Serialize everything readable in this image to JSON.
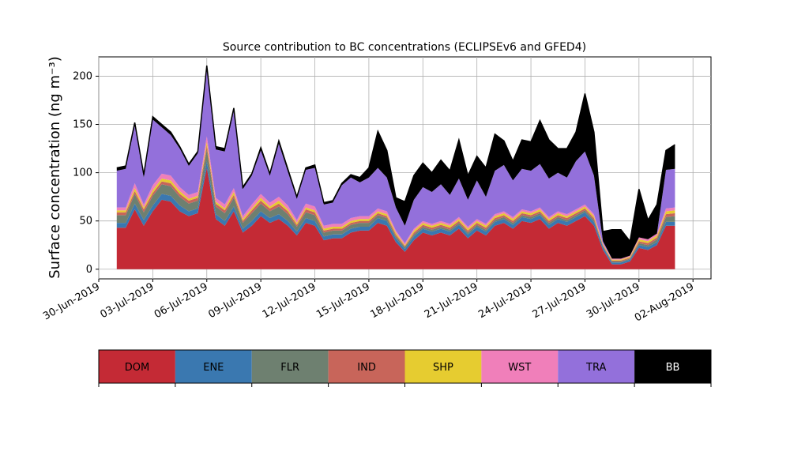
{
  "chart_data": {
    "type": "area",
    "stacked": true,
    "title": "Source contribution to BC concentrations (ECLIPSEv6 and GFED4)",
    "ylabel": "Surface concentration (ng m⁻³)",
    "xlabel": "",
    "ylim": [
      -10,
      220
    ],
    "xlim": [
      "2019-06-30",
      "2019-08-03"
    ],
    "grid": true,
    "yticks": [
      0,
      50,
      100,
      150,
      200
    ],
    "xticks": [
      "30-Jun-2019",
      "03-Jul-2019",
      "06-Jul-2019",
      "09-Jul-2019",
      "12-Jul-2019",
      "15-Jul-2019",
      "18-Jul-2019",
      "21-Jul-2019",
      "24-Jul-2019",
      "27-Jul-2019",
      "30-Jul-2019",
      "02-Aug-2019"
    ],
    "legend_placement": "colorbar below plot",
    "x": [
      "2019-07-01",
      "2019-07-01",
      "2019-07-02",
      "2019-07-02",
      "2019-07-03",
      "2019-07-03",
      "2019-07-04",
      "2019-07-04",
      "2019-07-05",
      "2019-07-05",
      "2019-07-06",
      "2019-07-06",
      "2019-07-07",
      "2019-07-07",
      "2019-07-08",
      "2019-07-08",
      "2019-07-09",
      "2019-07-09",
      "2019-07-10",
      "2019-07-10",
      "2019-07-11",
      "2019-07-11",
      "2019-07-12",
      "2019-07-12",
      "2019-07-13",
      "2019-07-13",
      "2019-07-14",
      "2019-07-14",
      "2019-07-15",
      "2019-07-15",
      "2019-07-16",
      "2019-07-16",
      "2019-07-17",
      "2019-07-17",
      "2019-07-18",
      "2019-07-18",
      "2019-07-19",
      "2019-07-19",
      "2019-07-20",
      "2019-07-20",
      "2019-07-21",
      "2019-07-21",
      "2019-07-22",
      "2019-07-22",
      "2019-07-23",
      "2019-07-23",
      "2019-07-24",
      "2019-07-24",
      "2019-07-25",
      "2019-07-25",
      "2019-07-26",
      "2019-07-26",
      "2019-07-27",
      "2019-07-27",
      "2019-07-28",
      "2019-07-28",
      "2019-07-29",
      "2019-07-29",
      "2019-07-30",
      "2019-07-30",
      "2019-07-31",
      "2019-07-31",
      "2019-08-01"
    ],
    "series": [
      {
        "name": "DOM",
        "color": "#c42a35",
        "values": [
          43,
          43,
          62,
          45,
          60,
          72,
          70,
          60,
          55,
          58,
          105,
          52,
          45,
          60,
          38,
          45,
          55,
          48,
          52,
          45,
          35,
          48,
          45,
          30,
          32,
          32,
          38,
          40,
          40,
          48,
          45,
          28,
          18,
          30,
          38,
          35,
          38,
          35,
          42,
          32,
          40,
          35,
          45,
          48,
          42,
          50,
          48,
          52,
          42,
          48,
          45,
          50,
          55,
          45,
          20,
          5,
          5,
          8,
          22,
          20,
          25,
          45,
          45
        ]
      },
      {
        "name": "ENE",
        "color": "#3a78b0",
        "values": [
          5,
          5,
          6,
          6,
          6,
          6,
          6,
          6,
          5,
          5,
          7,
          5,
          5,
          5,
          4,
          5,
          5,
          5,
          5,
          5,
          4,
          5,
          5,
          4,
          4,
          4,
          4,
          4,
          4,
          5,
          5,
          4,
          3,
          4,
          4,
          4,
          4,
          4,
          4,
          4,
          4,
          4,
          4,
          4,
          4,
          4,
          4,
          4,
          4,
          4,
          4,
          4,
          4,
          4,
          3,
          2,
          2,
          2,
          3,
          3,
          3,
          4,
          4
        ]
      },
      {
        "name": "FLR",
        "color": "#6e8070",
        "values": [
          8,
          8,
          10,
          8,
          10,
          10,
          10,
          9,
          8,
          8,
          12,
          8,
          8,
          9,
          6,
          8,
          8,
          7,
          8,
          7,
          5,
          6,
          6,
          4,
          4,
          4,
          4,
          4,
          4,
          3,
          3,
          2,
          2,
          2,
          2,
          2,
          2,
          2,
          2,
          2,
          2,
          2,
          2,
          2,
          2,
          2,
          2,
          2,
          2,
          2,
          2,
          2,
          2,
          2,
          1,
          1,
          1,
          1,
          2,
          2,
          3,
          5,
          6
        ]
      },
      {
        "name": "IND",
        "color": "#c8655a",
        "values": [
          3,
          3,
          3,
          3,
          3,
          3,
          3,
          3,
          3,
          3,
          4,
          3,
          3,
          3,
          2,
          3,
          3,
          3,
          3,
          3,
          2,
          3,
          3,
          2,
          2,
          2,
          2,
          2,
          2,
          2,
          2,
          2,
          1,
          2,
          2,
          2,
          2,
          2,
          2,
          2,
          2,
          2,
          2,
          2,
          2,
          2,
          2,
          2,
          2,
          2,
          2,
          2,
          2,
          2,
          1,
          1,
          1,
          1,
          2,
          2,
          2,
          3,
          3
        ]
      },
      {
        "name": "SHP",
        "color": "#e6cc30",
        "values": [
          2,
          2,
          3,
          2,
          3,
          3,
          3,
          3,
          2,
          2,
          4,
          2,
          2,
          3,
          2,
          2,
          3,
          2,
          3,
          2,
          2,
          2,
          2,
          2,
          2,
          2,
          2,
          2,
          2,
          2,
          2,
          2,
          1,
          2,
          2,
          2,
          2,
          2,
          2,
          2,
          2,
          2,
          2,
          2,
          2,
          2,
          2,
          2,
          2,
          2,
          2,
          2,
          2,
          2,
          1,
          1,
          1,
          1,
          2,
          2,
          2,
          3,
          3
        ]
      },
      {
        "name": "WST",
        "color": "#f07fba",
        "values": [
          3,
          3,
          5,
          3,
          5,
          5,
          5,
          4,
          4,
          4,
          6,
          4,
          4,
          4,
          3,
          4,
          4,
          4,
          4,
          4,
          3,
          4,
          4,
          3,
          3,
          3,
          3,
          3,
          3,
          3,
          3,
          2,
          2,
          2,
          2,
          2,
          2,
          2,
          2,
          2,
          2,
          2,
          2,
          2,
          2,
          2,
          2,
          2,
          2,
          2,
          2,
          2,
          2,
          2,
          1,
          1,
          1,
          1,
          2,
          2,
          2,
          3,
          3
        ]
      },
      {
        "name": "TRA",
        "color": "#9370db",
        "values": [
          38,
          40,
          60,
          28,
          68,
          48,
          42,
          40,
          30,
          40,
          70,
          50,
          55,
          80,
          28,
          30,
          45,
          28,
          55,
          35,
          22,
          35,
          40,
          22,
          22,
          40,
          42,
          35,
          40,
          42,
          35,
          24,
          18,
          30,
          35,
          33,
          38,
          30,
          40,
          28,
          40,
          28,
          45,
          48,
          38,
          42,
          42,
          45,
          40,
          40,
          38,
          50,
          55,
          40,
          2,
          0,
          0,
          0,
          0,
          0,
          0,
          40,
          40
        ]
      },
      {
        "name": "BB",
        "color": "#000000",
        "values": [
          3,
          3,
          3,
          3,
          3,
          3,
          3,
          2,
          2,
          2,
          3,
          3,
          3,
          3,
          2,
          2,
          3,
          2,
          3,
          3,
          2,
          2,
          3,
          2,
          2,
          2,
          3,
          5,
          10,
          38,
          28,
          10,
          25,
          25,
          25,
          20,
          25,
          25,
          40,
          25,
          25,
          30,
          38,
          25,
          20,
          30,
          30,
          45,
          40,
          25,
          30,
          30,
          60,
          45,
          10,
          30,
          30,
          15,
          50,
          20,
          30,
          20,
          25
        ]
      }
    ],
    "colorbar": [
      "DOM",
      "ENE",
      "FLR",
      "IND",
      "SHP",
      "WST",
      "TRA",
      "BB"
    ]
  }
}
